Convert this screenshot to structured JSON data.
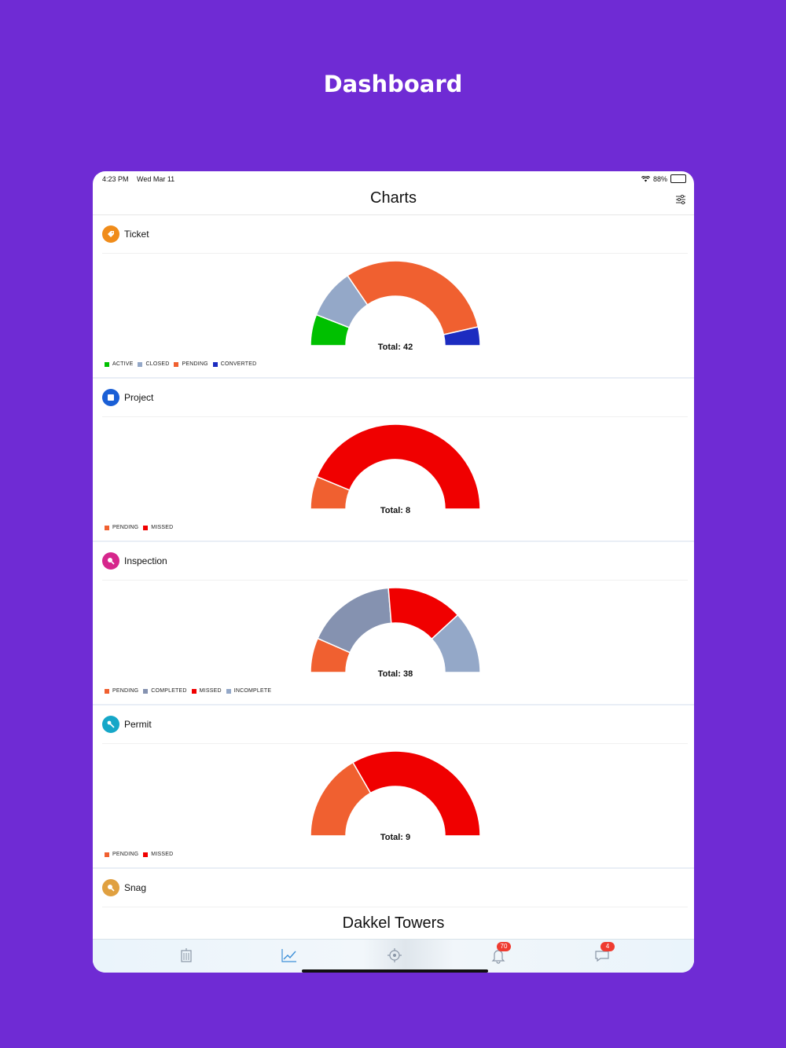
{
  "promo": {
    "title": "Dashboard"
  },
  "status_bar": {
    "time": "4:23 PM",
    "date": "Wed Mar 11",
    "battery": "88%",
    "battery_level": 0.88
  },
  "nav": {
    "title": "Charts",
    "filter_icon": "sliders-icon"
  },
  "charts": [
    {
      "title": "Ticket",
      "icon": "tag-icon",
      "icon_color": "#f08c1a",
      "total_label": "Total: 42",
      "slices": [
        {
          "label": "ACTIVE",
          "value": 5,
          "color": "#00c000"
        },
        {
          "label": "CLOSED",
          "value": 8,
          "color": "#94a8c8"
        },
        {
          "label": "PENDING",
          "value": 26,
          "color": "#f06030"
        },
        {
          "label": "CONVERTED",
          "value": 3,
          "color": "#1c2cc0"
        }
      ]
    },
    {
      "title": "Project",
      "icon": "square-icon",
      "icon_color": "#1a5fd6",
      "total_label": "Total: 8",
      "slices": [
        {
          "label": "PENDING",
          "value": 1,
          "color": "#f06030"
        },
        {
          "label": "MISSED",
          "value": 7,
          "color": "#f00000"
        }
      ]
    },
    {
      "title": "Inspection",
      "icon": "search-icon",
      "icon_color": "#d6268c",
      "total_label": "Total: 38",
      "slices": [
        {
          "label": "PENDING",
          "value": 5,
          "color": "#f06030"
        },
        {
          "label": "COMPLETED",
          "value": 13,
          "color": "#8592b0"
        },
        {
          "label": "MISSED",
          "value": 11,
          "color": "#f00000"
        },
        {
          "label": "INCOMPLETE",
          "value": 9,
          "color": "#94a8c8"
        }
      ]
    },
    {
      "title": "Permit",
      "icon": "key-icon",
      "icon_color": "#16a7c8",
      "total_label": "Total: 9",
      "slices": [
        {
          "label": "PENDING",
          "value": 3,
          "color": "#f06030"
        },
        {
          "label": "MISSED",
          "value": 6,
          "color": "#f00000"
        }
      ]
    }
  ],
  "snag": {
    "title": "Snag",
    "icon": "search-icon",
    "icon_color": "#e0a040"
  },
  "site": {
    "name": "Dakkel Towers"
  },
  "tabs": [
    {
      "name": "buildings",
      "icon": "building-icon"
    },
    {
      "name": "charts",
      "icon": "chart-line-icon"
    },
    {
      "name": "location",
      "icon": "target-icon"
    },
    {
      "name": "notifications",
      "icon": "bell-icon",
      "badge": "70"
    },
    {
      "name": "messages",
      "icon": "chat-icon",
      "badge": "4"
    }
  ]
}
